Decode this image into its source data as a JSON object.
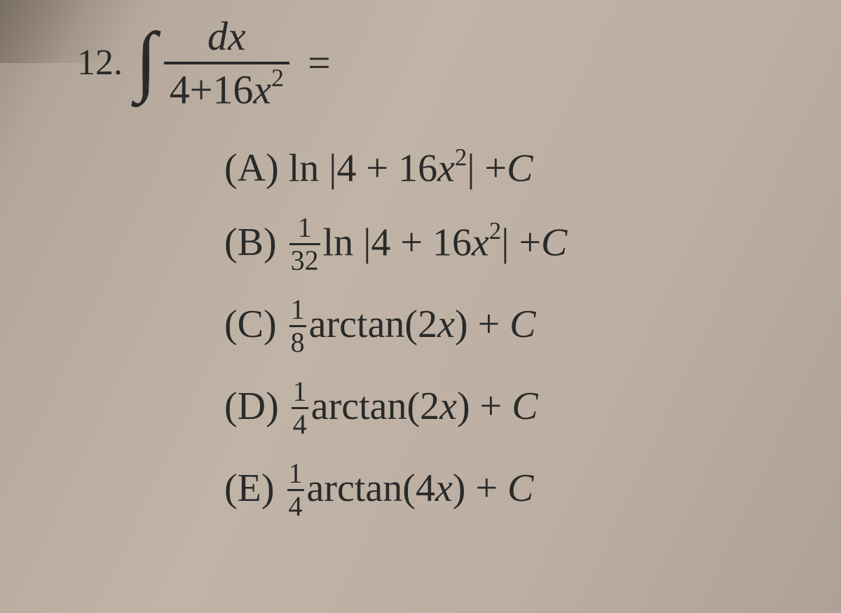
{
  "question": {
    "number": "12.",
    "integral_numerator": "dx",
    "integral_denominator_a": "4+16",
    "integral_denominator_x": "x",
    "integral_denominator_exp": "2",
    "equals": "="
  },
  "choices": {
    "A": {
      "label": "(A)",
      "prefix": "ln |4 + 16",
      "x": "x",
      "exp": "2",
      "suffix": "| +",
      "C": "C"
    },
    "B": {
      "label": "(B)",
      "frac_num": "1",
      "frac_den": "32",
      "mid": "ln |4 + 16",
      "x": "x",
      "exp": "2",
      "suffix": "| +",
      "C": "C"
    },
    "C": {
      "label": "(C)",
      "frac_num": "1",
      "frac_den": "8",
      "mid": "arctan(2",
      "x": "x",
      "suffix": ") + ",
      "Cc": "C"
    },
    "D": {
      "label": "(D)",
      "frac_num": "1",
      "frac_den": "4",
      "mid": "arctan(2",
      "x": "x",
      "suffix": ") + ",
      "Cc": "C"
    },
    "E": {
      "label": "(E)",
      "frac_num": "1",
      "frac_den": "4",
      "mid": "arctan(4",
      "x": "x",
      "suffix": ") + ",
      "Cc": "C"
    }
  }
}
